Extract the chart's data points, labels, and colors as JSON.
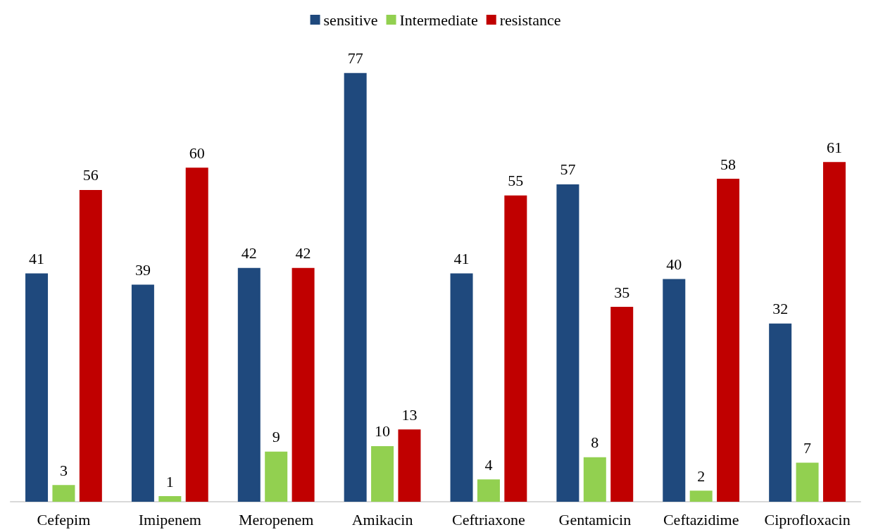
{
  "chart_data": {
    "type": "bar",
    "categories": [
      "Cefepim",
      "Imipenem",
      "Meropenem",
      "Amikacin",
      "Ceftriaxone",
      "Gentamicin",
      "Ceftazidime",
      "Ciprofloxacin"
    ],
    "series": [
      {
        "name": "sensitive",
        "color": "#1f497d",
        "values": [
          41,
          39,
          42,
          77,
          41,
          57,
          40,
          32
        ]
      },
      {
        "name": "Intermediate",
        "color": "#92d050",
        "values": [
          3,
          1,
          9,
          10,
          4,
          8,
          2,
          7
        ]
      },
      {
        "name": "resistance",
        "color": "#c00000",
        "values": [
          56,
          60,
          42,
          13,
          55,
          35,
          58,
          61
        ]
      }
    ],
    "data_labels": true,
    "legend": "top",
    "grid": false
  }
}
